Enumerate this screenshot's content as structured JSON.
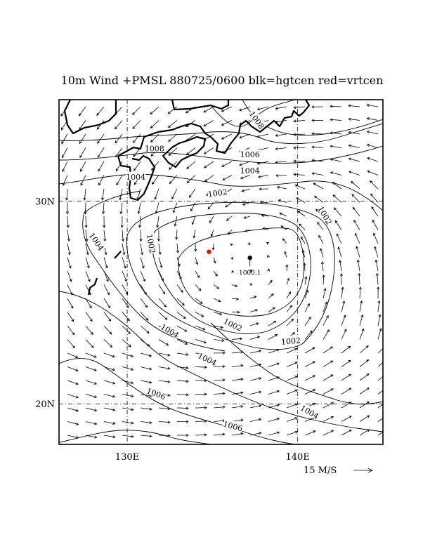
{
  "title": "10m Wind +PMSL 880725/0600 blk=hgtcen red=vrtcen",
  "map": {
    "lon_range": [
      126,
      145
    ],
    "lat_range": [
      18,
      35
    ],
    "lon_ticks": [
      {
        "value": 130,
        "label": "130E"
      },
      {
        "value": 140,
        "label": "140E"
      }
    ],
    "lat_ticks": [
      {
        "value": 30,
        "label": "30N"
      },
      {
        "value": 20,
        "label": "20N"
      }
    ],
    "gridlines": "dash-dot",
    "colors": {
      "lines": "#000000",
      "vorticity_center": "#ff0000",
      "height_center": "#000000"
    }
  },
  "pressure_center": {
    "label": "1000.1",
    "lon": 137.2,
    "lat": 27.2
  },
  "vorticity_center": {
    "lon": 134.8,
    "lat": 27.5
  },
  "contour_labels": [
    {
      "text": "1008",
      "lon": 137.6,
      "lat": 34.0,
      "rot": 55
    },
    {
      "text": "1008",
      "lon": 131.6,
      "lat": 32.6,
      "rot": 0
    },
    {
      "text": "1006",
      "lon": 137.2,
      "lat": 32.3,
      "rot": 0
    },
    {
      "text": "1004",
      "lon": 137.2,
      "lat": 31.5,
      "rot": 0
    },
    {
      "text": "1004",
      "lon": 130.5,
      "lat": 31.2,
      "rot": 0
    },
    {
      "text": "1002",
      "lon": 135.3,
      "lat": 30.4,
      "rot": -8
    },
    {
      "text": "1002",
      "lon": 141.6,
      "lat": 29.3,
      "rot": 60
    },
    {
      "text": "1004",
      "lon": 128.2,
      "lat": 28.0,
      "rot": 55
    },
    {
      "text": "1002",
      "lon": 131.4,
      "lat": 27.9,
      "rot": 80
    },
    {
      "text": "1002",
      "lon": 136.2,
      "lat": 23.9,
      "rot": 25
    },
    {
      "text": "1002",
      "lon": 139.6,
      "lat": 23.1,
      "rot": -5
    },
    {
      "text": "1004",
      "lon": 132.5,
      "lat": 23.6,
      "rot": 30
    },
    {
      "text": "1004",
      "lon": 134.7,
      "lat": 22.2,
      "rot": 25
    },
    {
      "text": "1006",
      "lon": 131.7,
      "lat": 20.5,
      "rot": 20
    },
    {
      "text": "1006",
      "lon": 136.2,
      "lat": 18.9,
      "rot": 15
    },
    {
      "text": "1004",
      "lon": 140.7,
      "lat": 19.6,
      "rot": 30
    }
  ],
  "wind_reference": {
    "label": "15 M/S",
    "speed_ms": 15
  }
}
